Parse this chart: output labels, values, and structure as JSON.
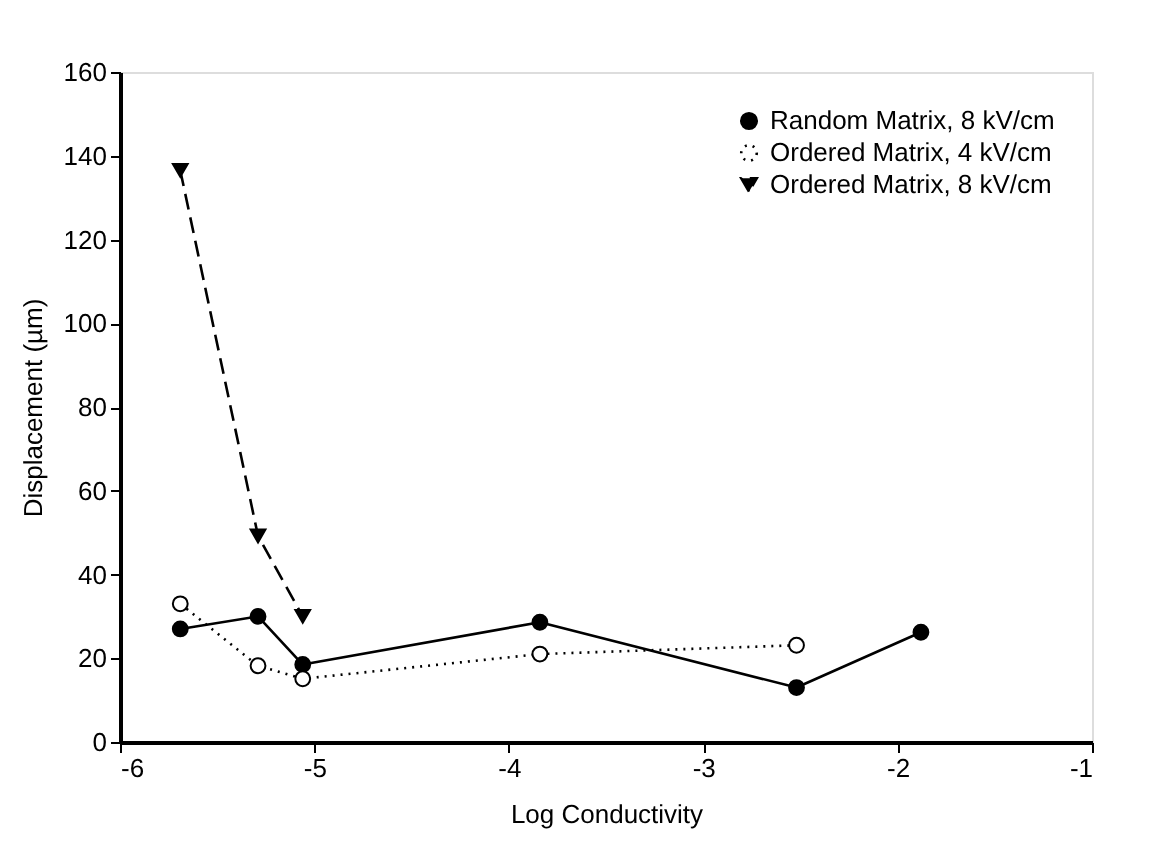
{
  "chart_data": {
    "type": "line",
    "xlabel": "Log Conductivity",
    "ylabel": "Displacement (µm)",
    "xlim": [
      -6,
      -1
    ],
    "xticks": [
      -6,
      -5,
      -4,
      -3,
      -2,
      -1
    ],
    "ylim": [
      0,
      160
    ],
    "yticks": [
      0,
      20,
      40,
      60,
      80,
      100,
      120,
      140,
      160
    ],
    "grid": false,
    "legend": "top right",
    "series": [
      {
        "name": "Random Matrix, 8 kV/cm",
        "color": "#000000",
        "marker": "circle",
        "line_style": "solid",
        "x": [
          -5.69,
          -5.29,
          -5.06,
          -3.84,
          -2.52,
          -1.88
        ],
        "values": [
          27,
          30,
          18.5,
          28.6,
          13,
          26.2
        ]
      },
      {
        "name": "Ordered Matrix, 4 kV/cm",
        "color": "#000000",
        "marker": "circle",
        "line_style": "dotted",
        "x": [
          -5.69,
          -5.29,
          -5.06,
          -3.84,
          -2.52
        ],
        "values": [
          33,
          18.2,
          15.1,
          21,
          23.1
        ]
      },
      {
        "name": "Ordered Matrix, 8 kV/cm",
        "color": "#000000",
        "marker": "triangle",
        "line_style": "dashed",
        "x": [
          -5.69,
          -5.29,
          -5.06
        ],
        "values": [
          136.5,
          49.2,
          30
        ]
      }
    ]
  }
}
